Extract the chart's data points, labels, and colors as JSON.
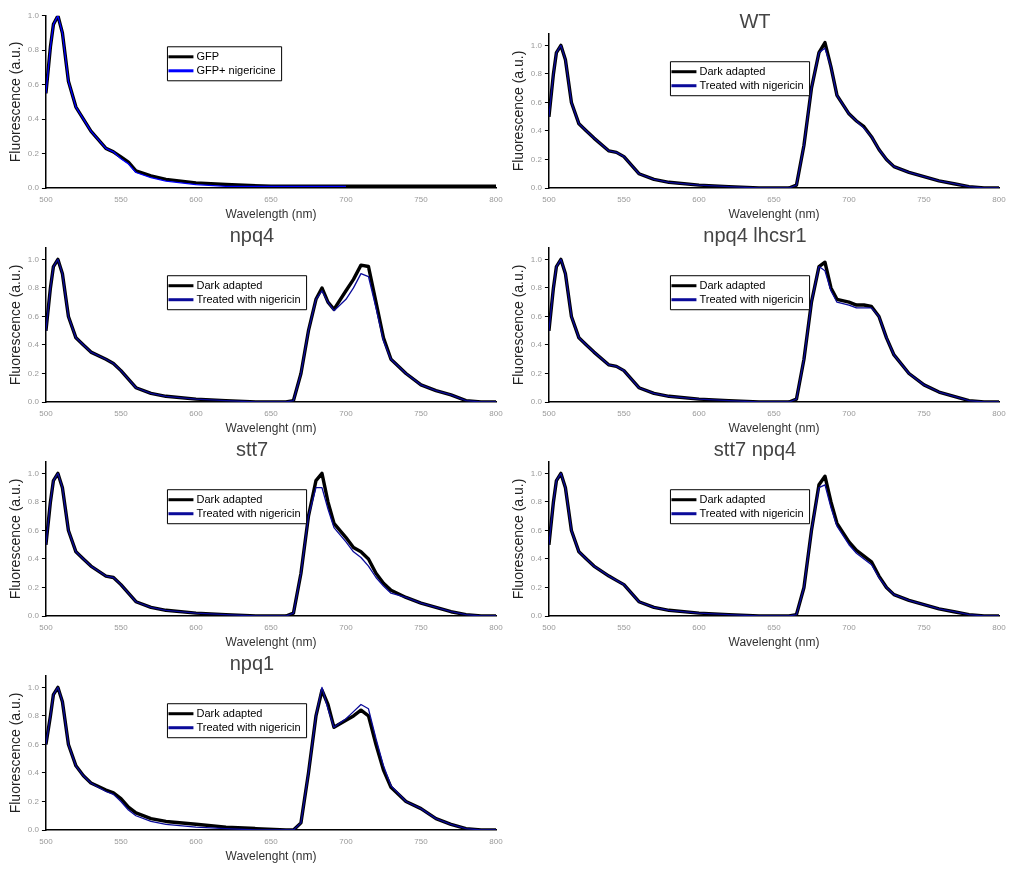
{
  "chart_data": [
    {
      "type": "line",
      "xlabel": "Wavelength (nm)",
      "ylabel": "Fluorescence (a.u.)",
      "legend": "top left",
      "grid": false,
      "x": [
        500,
        503,
        505,
        508,
        511,
        515,
        520,
        525,
        530,
        540,
        545,
        550,
        555,
        560,
        570,
        580,
        600,
        620,
        650,
        700,
        750,
        800
      ],
      "series": [
        {
          "name": "GFP",
          "color": "#000000",
          "values": [
            0.55,
            0.82,
            0.95,
            1.0,
            0.9,
            0.62,
            0.47,
            0.4,
            0.33,
            0.23,
            0.21,
            0.18,
            0.15,
            0.1,
            0.07,
            0.05,
            0.03,
            0.02,
            0.01,
            0.01,
            0.01,
            0.01
          ]
        },
        {
          "name": "GFP+ nigericine",
          "color": "#0000ff",
          "values": [
            0.55,
            0.82,
            0.95,
            1.0,
            0.9,
            0.62,
            0.47,
            0.4,
            0.33,
            0.23,
            0.21,
            0.17,
            0.14,
            0.09,
            0.06,
            0.04,
            0.02,
            0.01,
            0.01,
            0.01,
            null,
            null
          ]
        }
      ],
      "xlim": [
        500,
        800
      ],
      "xticks": [
        500,
        550,
        600,
        650,
        700,
        750,
        800
      ],
      "ylim": [
        0,
        1.0
      ],
      "yticks": [
        {
          "value": 0,
          "label": "0.0"
        },
        {
          "value": 0.2,
          "label": "0.2"
        },
        {
          "value": 0.4,
          "label": "0.4"
        },
        {
          "value": 0.6,
          "label": "0.6"
        },
        {
          "value": 0.8,
          "label": "0.8"
        },
        {
          "value": 1,
          "label": "1.0"
        }
      ]
    },
    {
      "type": "line",
      "title": "WT",
      "xlabel": "Wavelenght (nm)",
      "ylabel": "Fluorescence (a.u.)",
      "legend": "top left",
      "grid": false,
      "x": [
        500,
        503,
        505,
        508,
        511,
        515,
        520,
        525,
        530,
        540,
        545,
        550,
        555,
        560,
        570,
        580,
        600,
        620,
        640,
        660,
        665,
        670,
        675,
        680,
        684,
        688,
        692,
        700,
        705,
        710,
        715,
        720,
        725,
        730,
        740,
        750,
        760,
        770,
        780,
        790,
        800
      ],
      "series": [
        {
          "name": "Dark adapted",
          "color": "#000000",
          "values": [
            0.5,
            0.8,
            0.95,
            1.0,
            0.9,
            0.6,
            0.45,
            0.4,
            0.35,
            0.26,
            0.25,
            0.22,
            0.16,
            0.1,
            0.06,
            0.04,
            0.02,
            0.01,
            0.0,
            0,
            0.02,
            0.3,
            0.7,
            0.95,
            1.02,
            0.85,
            0.65,
            0.52,
            0.47,
            0.43,
            0.36,
            0.27,
            0.2,
            0.15,
            0.11,
            0.08,
            0.05,
            0.03,
            0.01,
            0,
            0
          ]
        },
        {
          "name": "Treated with nigericin",
          "color": "#0a0a9a",
          "values": [
            0.5,
            0.8,
            0.95,
            1.0,
            0.9,
            0.6,
            0.45,
            0.4,
            0.35,
            0.26,
            0.25,
            0.22,
            0.16,
            0.1,
            0.06,
            0.04,
            0.02,
            0.01,
            0.0,
            0,
            0.02,
            0.3,
            0.7,
            0.95,
            0.98,
            0.85,
            0.65,
            0.52,
            0.47,
            0.42,
            0.36,
            0.27,
            0.2,
            0.15,
            0.11,
            0.08,
            0.05,
            0.03,
            0.01,
            0,
            0
          ]
        }
      ],
      "xlim": [
        500,
        800
      ],
      "xticks": [
        500,
        550,
        600,
        650,
        700,
        750,
        800
      ],
      "ylim": [
        0,
        1.08
      ],
      "yticks": [
        {
          "value": 0,
          "label": "0.0"
        },
        {
          "value": 0.2,
          "label": "0.2"
        },
        {
          "value": 0.4,
          "label": "0.4"
        },
        {
          "value": 0.6,
          "label": "0.6"
        },
        {
          "value": 0.8,
          "label": "0.8"
        },
        {
          "value": 1,
          "label": "1.0"
        }
      ]
    },
    {
      "type": "line",
      "title": "npq4",
      "xlabel": "Wavelenght (nm)",
      "ylabel": "Fluorescence (a.u.)",
      "legend": "top left",
      "grid": false,
      "x": [
        500,
        503,
        505,
        508,
        511,
        515,
        520,
        525,
        530,
        540,
        545,
        550,
        555,
        560,
        570,
        580,
        600,
        620,
        640,
        660,
        665,
        670,
        675,
        680,
        684,
        688,
        692,
        700,
        705,
        710,
        715,
        720,
        725,
        730,
        740,
        750,
        760,
        770,
        780,
        790,
        800
      ],
      "series": [
        {
          "name": "Dark adapted",
          "color": "#000000",
          "values": [
            0.5,
            0.8,
            0.95,
            1.0,
            0.9,
            0.6,
            0.45,
            0.4,
            0.35,
            0.3,
            0.27,
            0.22,
            0.16,
            0.1,
            0.06,
            0.04,
            0.02,
            0.01,
            0.0,
            0,
            0.01,
            0.2,
            0.5,
            0.72,
            0.8,
            0.7,
            0.65,
            0.78,
            0.86,
            0.96,
            0.95,
            0.7,
            0.45,
            0.3,
            0.2,
            0.12,
            0.08,
            0.05,
            0.01,
            0,
            0
          ]
        },
        {
          "name": "Treated with nigericin",
          "color": "#0a0a9a",
          "values": [
            0.5,
            0.8,
            0.95,
            1.0,
            0.9,
            0.6,
            0.45,
            0.4,
            0.35,
            0.3,
            0.27,
            0.22,
            0.16,
            0.1,
            0.06,
            0.04,
            0.02,
            0.01,
            0.0,
            0,
            0.01,
            0.2,
            0.5,
            0.72,
            0.78,
            0.7,
            0.64,
            0.72,
            0.8,
            0.9,
            0.88,
            0.66,
            0.43,
            0.3,
            0.2,
            0.12,
            0.08,
            0.05,
            0.01,
            0,
            0
          ]
        }
      ],
      "xlim": [
        500,
        800
      ],
      "xticks": [
        500,
        550,
        600,
        650,
        700,
        750,
        800
      ],
      "ylim": [
        0,
        1.08
      ],
      "yticks": [
        {
          "value": 0,
          "label": "0.0"
        },
        {
          "value": 0.2,
          "label": "0.2"
        },
        {
          "value": 0.4,
          "label": "0.4"
        },
        {
          "value": 0.6,
          "label": "0.6"
        },
        {
          "value": 0.8,
          "label": "0.8"
        },
        {
          "value": 1,
          "label": "1.0"
        }
      ]
    },
    {
      "type": "line",
      "title": "npq4 lhcsr1",
      "xlabel": "Wavelenght (nm)",
      "ylabel": "Fluorescence (a.u.)",
      "legend": "top left",
      "grid": false,
      "x": [
        500,
        503,
        505,
        508,
        511,
        515,
        520,
        525,
        530,
        540,
        545,
        550,
        555,
        560,
        570,
        580,
        600,
        620,
        640,
        660,
        665,
        670,
        675,
        680,
        684,
        688,
        692,
        700,
        705,
        710,
        715,
        720,
        725,
        730,
        740,
        750,
        760,
        770,
        780,
        790,
        800
      ],
      "series": [
        {
          "name": "Dark adapted",
          "color": "#000000",
          "values": [
            0.5,
            0.8,
            0.95,
            1.0,
            0.9,
            0.6,
            0.45,
            0.4,
            0.35,
            0.26,
            0.25,
            0.22,
            0.16,
            0.1,
            0.06,
            0.04,
            0.02,
            0.01,
            0.0,
            0,
            0.02,
            0.3,
            0.7,
            0.95,
            0.98,
            0.8,
            0.72,
            0.7,
            0.68,
            0.68,
            0.67,
            0.6,
            0.45,
            0.33,
            0.2,
            0.12,
            0.07,
            0.04,
            0.01,
            0,
            0
          ]
        },
        {
          "name": "Treated with nigericin",
          "color": "#0a0a9a",
          "values": [
            0.5,
            0.8,
            0.95,
            1.0,
            0.9,
            0.6,
            0.45,
            0.4,
            0.35,
            0.26,
            0.25,
            0.22,
            0.16,
            0.1,
            0.06,
            0.04,
            0.02,
            0.01,
            0.0,
            0,
            0.02,
            0.3,
            0.7,
            0.95,
            0.92,
            0.78,
            0.7,
            0.68,
            0.66,
            0.66,
            0.66,
            0.6,
            0.45,
            0.33,
            0.2,
            0.12,
            0.07,
            0.04,
            0.01,
            0,
            0
          ]
        }
      ],
      "xlim": [
        500,
        800
      ],
      "xticks": [
        500,
        550,
        600,
        650,
        700,
        750,
        800
      ],
      "ylim": [
        0,
        1.08
      ],
      "yticks": [
        {
          "value": 0,
          "label": "0.0"
        },
        {
          "value": 0.2,
          "label": "0.2"
        },
        {
          "value": 0.4,
          "label": "0.4"
        },
        {
          "value": 0.6,
          "label": "0.6"
        },
        {
          "value": 0.8,
          "label": "0.8"
        },
        {
          "value": 1,
          "label": "1.0"
        }
      ]
    },
    {
      "type": "line",
      "title": "stt7",
      "xlabel": "Wavelenght (nm)",
      "ylabel": "Fluorescence (a.u.)",
      "legend": "top left",
      "grid": false,
      "x": [
        500,
        503,
        505,
        508,
        511,
        515,
        520,
        525,
        530,
        540,
        545,
        550,
        555,
        560,
        570,
        580,
        600,
        620,
        640,
        660,
        665,
        670,
        675,
        680,
        684,
        688,
        692,
        700,
        705,
        710,
        715,
        720,
        725,
        730,
        740,
        750,
        760,
        770,
        780,
        790,
        800
      ],
      "series": [
        {
          "name": "Dark adapted",
          "color": "#000000",
          "values": [
            0.5,
            0.8,
            0.95,
            1.0,
            0.9,
            0.6,
            0.45,
            0.4,
            0.35,
            0.28,
            0.27,
            0.22,
            0.16,
            0.1,
            0.06,
            0.04,
            0.02,
            0.01,
            0.0,
            0,
            0.02,
            0.3,
            0.7,
            0.95,
            1.0,
            0.8,
            0.65,
            0.55,
            0.48,
            0.45,
            0.4,
            0.3,
            0.23,
            0.18,
            0.13,
            0.09,
            0.06,
            0.03,
            0.01,
            0,
            0
          ]
        },
        {
          "name": "Treated with nigericin",
          "color": "#0a0a9a",
          "values": [
            0.5,
            0.8,
            0.95,
            1.0,
            0.9,
            0.6,
            0.45,
            0.4,
            0.35,
            0.28,
            0.27,
            0.22,
            0.16,
            0.1,
            0.06,
            0.04,
            0.02,
            0.01,
            0.0,
            0,
            0.02,
            0.3,
            0.7,
            0.9,
            0.9,
            0.75,
            0.62,
            0.52,
            0.45,
            0.41,
            0.35,
            0.27,
            0.21,
            0.16,
            0.13,
            0.09,
            0.06,
            0.03,
            0.01,
            0,
            0
          ]
        }
      ],
      "xlim": [
        500,
        800
      ],
      "xticks": [
        500,
        550,
        600,
        650,
        700,
        750,
        800
      ],
      "ylim": [
        0,
        1.08
      ],
      "yticks": [
        {
          "value": 0,
          "label": "0.0"
        },
        {
          "value": 0.2,
          "label": "0.2"
        },
        {
          "value": 0.4,
          "label": "0.4"
        },
        {
          "value": 0.6,
          "label": "0.6"
        },
        {
          "value": 0.8,
          "label": "0.8"
        },
        {
          "value": 1,
          "label": "1.0"
        }
      ]
    },
    {
      "type": "line",
      "title": "stt7 npq4",
      "xlabel": "Wavelenght (nm)",
      "ylabel": "Fluorescence (a.u.)",
      "legend": "top left",
      "grid": false,
      "x": [
        500,
        503,
        505,
        508,
        511,
        515,
        520,
        525,
        530,
        540,
        545,
        550,
        555,
        560,
        570,
        580,
        600,
        620,
        640,
        660,
        665,
        670,
        675,
        680,
        684,
        688,
        692,
        700,
        705,
        710,
        715,
        720,
        725,
        730,
        740,
        750,
        760,
        770,
        780,
        790,
        800
      ],
      "series": [
        {
          "name": "Dark adapted",
          "color": "#000000",
          "values": [
            0.5,
            0.8,
            0.95,
            1.0,
            0.9,
            0.6,
            0.45,
            0.4,
            0.35,
            0.28,
            0.25,
            0.22,
            0.16,
            0.1,
            0.06,
            0.04,
            0.02,
            0.01,
            0.0,
            0,
            0.01,
            0.2,
            0.6,
            0.92,
            0.98,
            0.8,
            0.65,
            0.52,
            0.46,
            0.42,
            0.38,
            0.28,
            0.2,
            0.15,
            0.11,
            0.08,
            0.05,
            0.03,
            0.01,
            0,
            0
          ]
        },
        {
          "name": "Treated with nigericin",
          "color": "#0a0a9a",
          "values": [
            0.5,
            0.8,
            0.95,
            1.0,
            0.9,
            0.6,
            0.45,
            0.4,
            0.35,
            0.28,
            0.25,
            0.22,
            0.16,
            0.1,
            0.06,
            0.04,
            0.02,
            0.01,
            0.0,
            0,
            0.01,
            0.2,
            0.6,
            0.9,
            0.92,
            0.76,
            0.63,
            0.5,
            0.44,
            0.4,
            0.36,
            0.27,
            0.2,
            0.15,
            0.11,
            0.08,
            0.05,
            0.03,
            0.01,
            0,
            0
          ]
        }
      ],
      "xlim": [
        500,
        800
      ],
      "xticks": [
        500,
        550,
        600,
        650,
        700,
        750,
        800
      ],
      "ylim": [
        0,
        1.08
      ],
      "yticks": [
        {
          "value": 0,
          "label": "0.0"
        },
        {
          "value": 0.2,
          "label": "0.2"
        },
        {
          "value": 0.4,
          "label": "0.4"
        },
        {
          "value": 0.6,
          "label": "0.6"
        },
        {
          "value": 0.8,
          "label": "0.8"
        },
        {
          "value": 1,
          "label": "1.0"
        }
      ]
    },
    {
      "type": "line",
      "title": "npq1",
      "xlabel": "Wavelenght (nm)",
      "ylabel": "Fluorescence (a.u.)",
      "legend": "top left",
      "grid": false,
      "x": [
        500,
        503,
        505,
        508,
        511,
        515,
        520,
        525,
        530,
        540,
        545,
        550,
        555,
        560,
        570,
        580,
        600,
        620,
        640,
        660,
        665,
        670,
        675,
        680,
        684,
        688,
        692,
        700,
        705,
        710,
        715,
        720,
        725,
        730,
        740,
        750,
        760,
        770,
        780,
        790,
        800
      ],
      "series": [
        {
          "name": "Dark adapted",
          "color": "#000000",
          "values": [
            0.6,
            0.8,
            0.95,
            1.0,
            0.9,
            0.6,
            0.45,
            0.38,
            0.33,
            0.28,
            0.26,
            0.22,
            0.16,
            0.12,
            0.08,
            0.06,
            0.04,
            0.02,
            0.01,
            0,
            0,
            0.05,
            0.4,
            0.8,
            0.98,
            0.88,
            0.72,
            0.77,
            0.8,
            0.84,
            0.8,
            0.6,
            0.42,
            0.3,
            0.2,
            0.15,
            0.08,
            0.04,
            0.01,
            0,
            0
          ]
        },
        {
          "name": "Treated with nigericin",
          "color": "#0a0a9a",
          "values": [
            0.6,
            0.8,
            0.95,
            1.0,
            0.9,
            0.6,
            0.45,
            0.38,
            0.33,
            0.27,
            0.25,
            0.2,
            0.14,
            0.1,
            0.06,
            0.04,
            0.02,
            0.01,
            0.0,
            0,
            0,
            0.05,
            0.4,
            0.8,
            1.0,
            0.85,
            0.72,
            0.78,
            0.83,
            0.88,
            0.85,
            0.64,
            0.45,
            0.31,
            0.2,
            0.15,
            0.08,
            0.04,
            0.01,
            0,
            0
          ]
        }
      ],
      "xlim": [
        500,
        800
      ],
      "xticks": [
        500,
        550,
        600,
        650,
        700,
        750,
        800
      ],
      "ylim": [
        0,
        1.08
      ],
      "yticks": [
        {
          "value": 0,
          "label": "0.0"
        },
        {
          "value": 0.2,
          "label": "0.2"
        },
        {
          "value": 0.4,
          "label": "0.4"
        },
        {
          "value": 0.6,
          "label": "0.6"
        },
        {
          "value": 0.8,
          "label": "0.8"
        },
        {
          "value": 1,
          "label": "1.0"
        }
      ]
    }
  ]
}
